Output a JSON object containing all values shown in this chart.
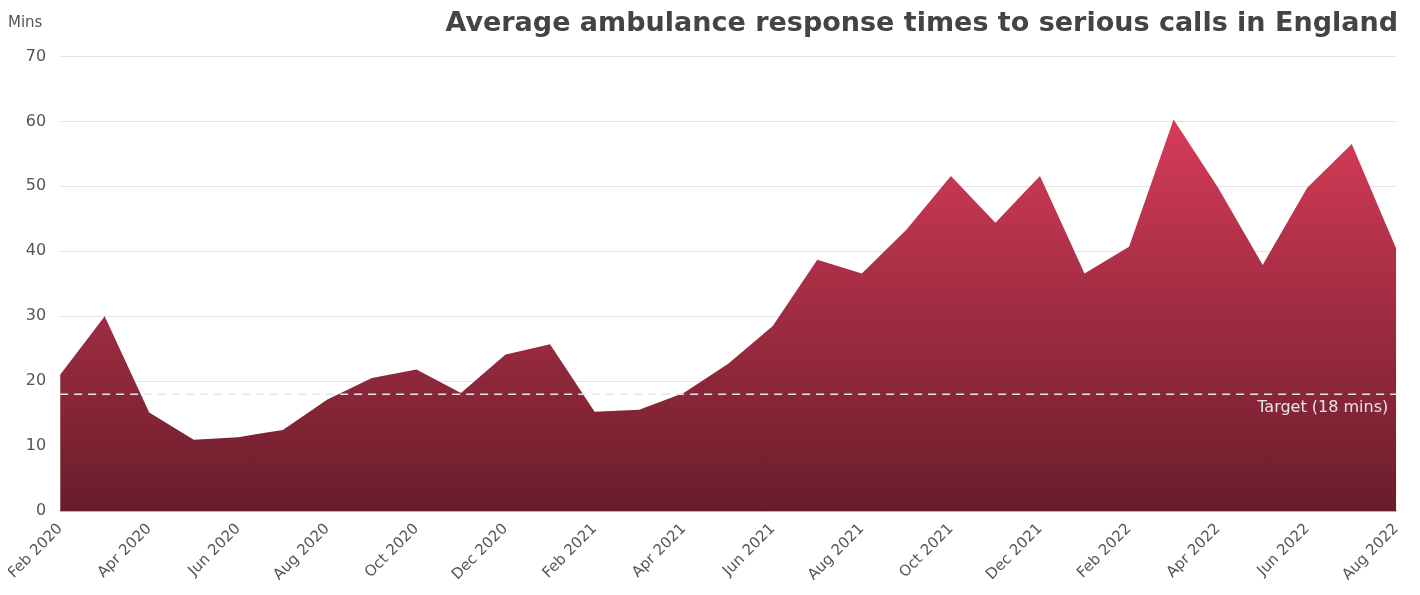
{
  "chart_data": {
    "type": "area",
    "title": "Average ambulance response times to serious calls in England",
    "ylabel": "Mins",
    "x": [
      "2020-02",
      "2020-03",
      "2020-04",
      "2020-05",
      "2020-06",
      "2020-07",
      "2020-08",
      "2020-09",
      "2020-10",
      "2020-11",
      "2020-12",
      "2021-01",
      "2021-02",
      "2021-03",
      "2021-04",
      "2021-05",
      "2021-06",
      "2021-07",
      "2021-08",
      "2021-09",
      "2021-10",
      "2021-11",
      "2021-12",
      "2022-01",
      "2022-02",
      "2022-03",
      "2022-04",
      "2022-05",
      "2022-06",
      "2022-07",
      "2022-08"
    ],
    "series": [
      {
        "color": "#e8405f",
        "values": [
          21,
          30,
          15.2,
          11,
          11.4,
          12.5,
          17.2,
          20.5,
          21.8,
          18.2,
          24.1,
          25.7,
          15.3,
          15.6,
          18.2,
          22.7,
          28.5,
          38.7,
          36.6,
          43.3,
          51.6,
          44.4,
          51.6,
          36.6,
          40.7,
          60.3,
          49.8,
          37.9,
          49.8,
          56.5,
          40.4
        ]
      }
    ],
    "xlim": [
      "2020-02",
      "2022-08"
    ],
    "xticks": [
      {
        "value": "2020-02",
        "label": "Feb 2020"
      },
      {
        "value": "2020-04",
        "label": "Apr 2020"
      },
      {
        "value": "2020-06",
        "label": "Jun 2020"
      },
      {
        "value": "2020-08",
        "label": "Aug 2020"
      },
      {
        "value": "2020-10",
        "label": "Oct 2020"
      },
      {
        "value": "2020-12",
        "label": "Dec 2020"
      },
      {
        "value": "2021-02",
        "label": "Feb 2021"
      },
      {
        "value": "2021-04",
        "label": "Apr 2021"
      },
      {
        "value": "2021-06",
        "label": "Jun 2021"
      },
      {
        "value": "2021-08",
        "label": "Aug 2021"
      },
      {
        "value": "2021-10",
        "label": "Oct 2021"
      },
      {
        "value": "2021-12",
        "label": "Dec 2021"
      },
      {
        "value": "2022-02",
        "label": "Feb 2022"
      },
      {
        "value": "2022-04",
        "label": "Apr 2022"
      },
      {
        "value": "2022-06",
        "label": "Jun 2022"
      },
      {
        "value": "2022-08",
        "label": "Aug 2022"
      }
    ],
    "ylim": [
      0,
      70
    ],
    "yticks": [
      0,
      10,
      20,
      30,
      40,
      50,
      60,
      70
    ],
    "ref_lines": [
      {
        "axis": "y",
        "value": 18,
        "label": "Target (18 mins)",
        "color": "#e6e6e6",
        "line_style": "dashed"
      }
    ],
    "grid": "y",
    "legend": false
  }
}
